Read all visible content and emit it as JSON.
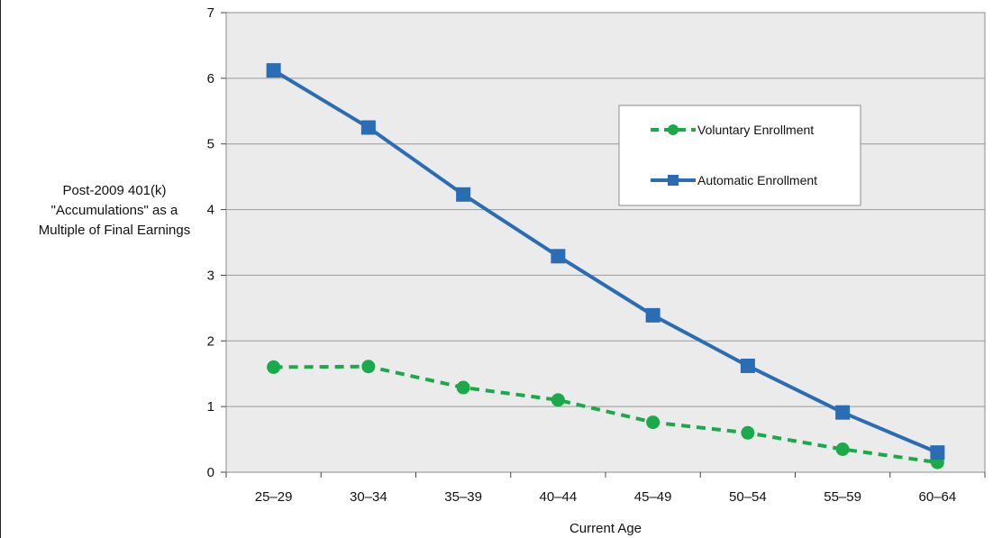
{
  "chart_data": {
    "type": "line",
    "title": "",
    "xlabel": "Current Age",
    "ylabel_lines": [
      "Post-2009 401(k)",
      "\"Accumulations\" as a",
      "Multiple of Final Earnings"
    ],
    "categories": [
      "25–29",
      "30–34",
      "35–39",
      "40–44",
      "45–49",
      "50–54",
      "55–59",
      "60–64"
    ],
    "ylim": [
      0,
      7
    ],
    "yticks": [
      "0",
      "1",
      "2",
      "3",
      "4",
      "5",
      "6",
      "7"
    ],
    "grid": true,
    "legend_position": "upper-right",
    "series": [
      {
        "name": "Voluntary Enrollment",
        "color": "#1aaa4a",
        "style": "dashed",
        "marker": "circle",
        "values": [
          1.6,
          1.61,
          1.29,
          1.1,
          0.76,
          0.6,
          0.35,
          0.15
        ]
      },
      {
        "name": "Automatic Enrollment",
        "color": "#2a6db5",
        "style": "solid",
        "marker": "square",
        "values": [
          6.12,
          5.25,
          4.23,
          3.29,
          2.39,
          1.62,
          0.91,
          0.3
        ]
      }
    ]
  }
}
